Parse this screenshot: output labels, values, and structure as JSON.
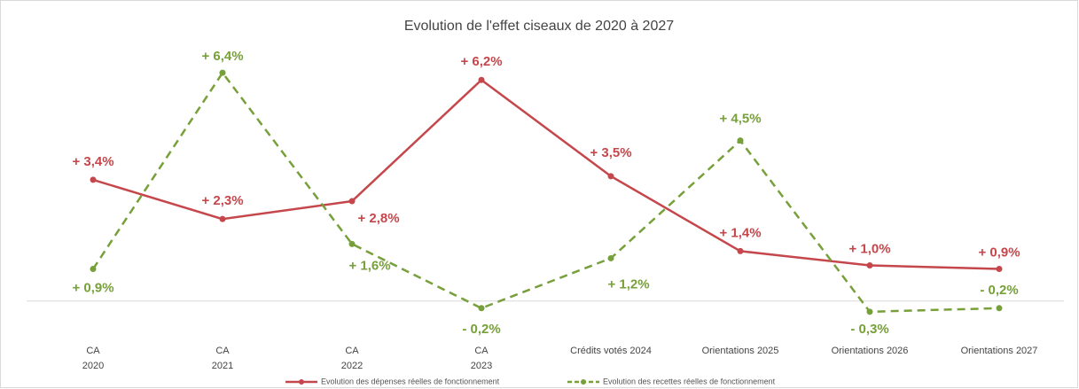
{
  "chart_data": {
    "type": "line",
    "title": "Evolution de l'effet ciseaux de 2020 à 2027",
    "categories": [
      [
        "CA",
        "2020"
      ],
      [
        "CA",
        "2021"
      ],
      [
        "CA",
        "2022"
      ],
      [
        "CA",
        "2023"
      ],
      [
        "Crédits votés 2024"
      ],
      [
        "Orientations 2025"
      ],
      [
        "Orientations 2026"
      ],
      [
        "Orientations 2027"
      ]
    ],
    "series": [
      {
        "name": "Evolution des dépenses réelles de fonctionnement",
        "color": "#c5474b",
        "dash": false,
        "values": [
          3.4,
          2.3,
          2.8,
          6.2,
          3.5,
          1.4,
          1.0,
          0.9
        ],
        "value_labels": [
          "+ 3,4%",
          "+ 2,3%",
          "+ 2,8%",
          "+ 6,2%",
          "+ 3,5%",
          "+ 1,4%",
          "+ 1,0%",
          "+ 0,9%"
        ]
      },
      {
        "name": "Evolution des recettes réelles de fonctionnement",
        "color": "#77a03a",
        "dash": true,
        "values": [
          0.9,
          6.4,
          1.6,
          -0.2,
          1.2,
          4.5,
          -0.3,
          -0.2
        ],
        "value_labels": [
          "+ 0,9%",
          "+ 6,4%",
          "+ 1,6%",
          "- 0,2%",
          "+ 1,2%",
          "+ 4,5%",
          "- 0,3%",
          "- 0,2%"
        ]
      }
    ],
    "ylim": [
      -1,
      7
    ]
  }
}
